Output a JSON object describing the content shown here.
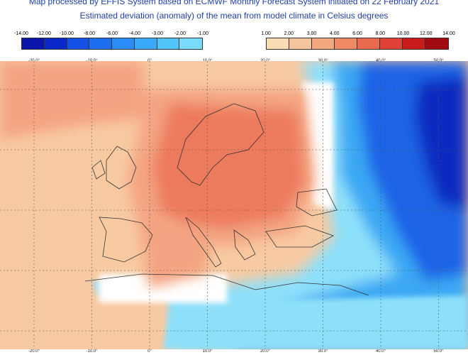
{
  "title": {
    "line1": "Map processed by EFFIS System based on ECMWF Monthly Forecast System initiated on 22 February 2021",
    "line2": "Estimated deviation (anomaly) of the mean from model climate in Celsius degrees"
  },
  "legend_negative": {
    "ticks": [
      "-14.00",
      "-12.00",
      "-10.00",
      "-8.00",
      "-6.00",
      "-4.00",
      "-3.00",
      "-2.00",
      "-1.00"
    ],
    "colors": [
      "#0a14a8",
      "#0a28c8",
      "#1450e6",
      "#1e6ef0",
      "#2a8cf6",
      "#3aaaf8",
      "#52c6fa",
      "#7adcfc"
    ]
  },
  "legend_positive": {
    "ticks": [
      "1.00",
      "2.00",
      "3.00",
      "4.00",
      "6.00",
      "8.00",
      "10.00",
      "12.00",
      "14.00"
    ],
    "colors": [
      "#fadcb4",
      "#f6c49c",
      "#f4a880",
      "#f08a66",
      "#ea6a50",
      "#e04238",
      "#c81c1c",
      "#a00a10"
    ]
  },
  "map": {
    "lon_labels": [
      "-20.0°",
      "-10.0°",
      "0°",
      "10.0°",
      "20.0°",
      "30.0°",
      "40.0°",
      "50.0°"
    ],
    "lon_values": [
      -20,
      -10,
      0,
      10,
      20,
      30,
      40,
      50
    ],
    "colors": {
      "warm_light": "#f8caa2",
      "warm_mid": "#f4a482",
      "warm_core": "#ec7a5c",
      "cold_light": "#8ee0fa",
      "cold_mid": "#3aa8f4",
      "cold_deep": "#1a64e6",
      "cold_core": "#0a2cc0",
      "coast": "#333333",
      "grid": "#555555"
    }
  }
}
